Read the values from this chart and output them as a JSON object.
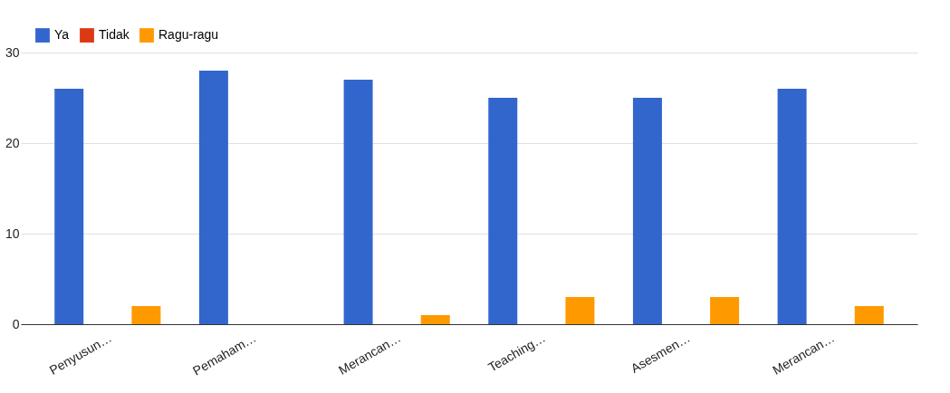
{
  "chart_data": {
    "type": "bar",
    "categories": [
      "Penyusun…",
      "Pemaham…",
      "Merancan…",
      "Teaching…",
      "Asesmen…",
      "Merancan…"
    ],
    "series": [
      {
        "name": "Ya",
        "color": "#3366cc",
        "values": [
          26,
          28,
          27,
          25,
          25,
          26
        ]
      },
      {
        "name": "Tidak",
        "color": "#dc3912",
        "values": [
          0,
          0,
          0,
          0,
          0,
          0
        ]
      },
      {
        "name": "Ragu-ragu",
        "color": "#ff9900",
        "values": [
          2,
          0,
          1,
          3,
          3,
          2
        ]
      }
    ],
    "ylim": [
      0,
      30
    ],
    "yticks": [
      0,
      10,
      20,
      30
    ],
    "grid": "y",
    "legend": "top left"
  }
}
